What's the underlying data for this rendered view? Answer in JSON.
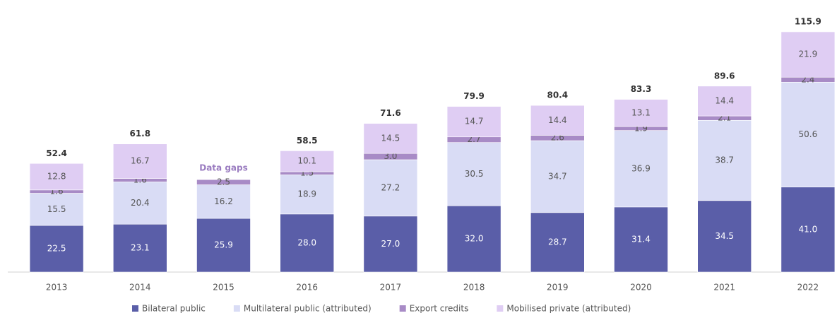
{
  "chart_data": {
    "type": "stacked_bar",
    "categories": [
      "2013",
      "2014",
      "2015",
      "2016",
      "2017",
      "2018",
      "2019",
      "2020",
      "2021",
      "2022"
    ],
    "series": [
      {
        "name": "Bilateral public",
        "color": "#5a5ea8",
        "values": [
          22.5,
          23.1,
          25.9,
          28.0,
          27.0,
          32.0,
          28.7,
          31.4,
          34.5,
          41.0
        ],
        "value_labels": [
          "22.5",
          "23.1",
          "25.9",
          "28.0",
          "27.0",
          "32.0",
          "28.7",
          "31.4",
          "34.5",
          "41.0"
        ]
      },
      {
        "name": "Multilateral public (attributed)",
        "color": "#d9dcf5",
        "values": [
          15.5,
          20.4,
          16.2,
          18.9,
          27.2,
          30.5,
          34.7,
          36.9,
          38.7,
          50.6
        ]
      },
      {
        "name": "Export credits",
        "color": "#a88bc6",
        "values": [
          1.6,
          1.6,
          2.5,
          1.5,
          3.0,
          2.7,
          2.6,
          1.9,
          2.1,
          2.4
        ],
        "value_labels": [
          "1.6",
          "1.6",
          "2.5",
          "1.5",
          "3.0",
          "2.7",
          "2.6",
          "1.9",
          "2.1",
          "2.4"
        ]
      },
      {
        "name": "Mobilised private (attributed)",
        "color": "#dfcdf3",
        "values": [
          12.8,
          16.7,
          null,
          10.1,
          14.5,
          14.7,
          14.4,
          13.1,
          14.4,
          21.9
        ]
      }
    ],
    "totals": [
      52.4,
      61.8,
      null,
      58.5,
      71.6,
      79.9,
      80.4,
      83.3,
      89.6,
      115.9
    ],
    "annotation": "Data gaps",
    "legend": "bottom"
  }
}
